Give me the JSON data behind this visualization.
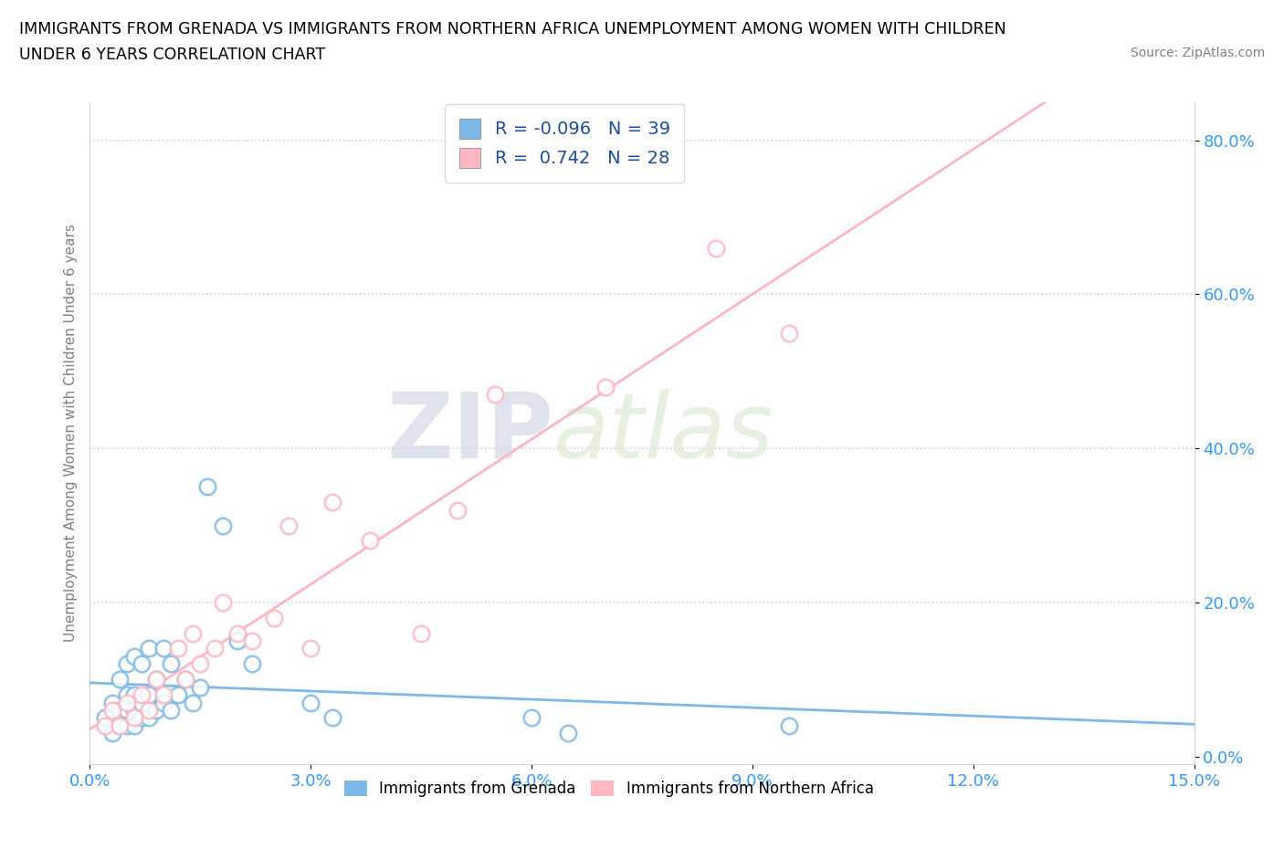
{
  "title_line1": "IMMIGRANTS FROM GRENADA VS IMMIGRANTS FROM NORTHERN AFRICA UNEMPLOYMENT AMONG WOMEN WITH CHILDREN",
  "title_line2": "UNDER 6 YEARS CORRELATION CHART",
  "source": "Source: ZipAtlas.com",
  "ylabel": "Unemployment Among Women with Children Under 6 years",
  "xlabel_ticks": [
    "0.0%",
    "3.0%",
    "6.0%",
    "9.0%",
    "12.0%",
    "15.0%"
  ],
  "ylabel_ticks": [
    "0.0%",
    "20.0%",
    "40.0%",
    "60.0%",
    "80.0%"
  ],
  "xtick_vals": [
    0.0,
    0.03,
    0.06,
    0.09,
    0.12,
    0.15
  ],
  "ytick_vals": [
    0.0,
    0.2,
    0.4,
    0.6,
    0.8
  ],
  "xlim": [
    0.0,
    0.15
  ],
  "ylim": [
    -0.01,
    0.85
  ],
  "r_grenada": -0.096,
  "n_grenada": 39,
  "r_north_africa": 0.742,
  "n_north_africa": 28,
  "color_grenada": "#7cb9e8",
  "color_north_africa": "#ffb6c1",
  "watermark_zip": "ZIP",
  "watermark_atlas": "atlas",
  "legend_label_grenada": "Immigrants from Grenada",
  "legend_label_north_africa": "Immigrants from Northern Africa",
  "grenada_x": [
    0.002,
    0.003,
    0.003,
    0.004,
    0.004,
    0.004,
    0.005,
    0.005,
    0.005,
    0.005,
    0.006,
    0.006,
    0.006,
    0.006,
    0.007,
    0.007,
    0.007,
    0.008,
    0.008,
    0.008,
    0.009,
    0.009,
    0.01,
    0.01,
    0.011,
    0.011,
    0.012,
    0.013,
    0.014,
    0.015,
    0.016,
    0.018,
    0.02,
    0.022,
    0.03,
    0.033,
    0.06,
    0.065,
    0.095
  ],
  "grenada_y": [
    0.05,
    0.03,
    0.07,
    0.04,
    0.06,
    0.1,
    0.04,
    0.06,
    0.08,
    0.12,
    0.04,
    0.06,
    0.08,
    0.13,
    0.05,
    0.07,
    0.12,
    0.05,
    0.08,
    0.14,
    0.06,
    0.1,
    0.07,
    0.14,
    0.06,
    0.12,
    0.08,
    0.1,
    0.07,
    0.09,
    0.35,
    0.3,
    0.15,
    0.12,
    0.07,
    0.05,
    0.05,
    0.03,
    0.04
  ],
  "north_africa_x": [
    0.002,
    0.003,
    0.004,
    0.005,
    0.006,
    0.007,
    0.008,
    0.009,
    0.01,
    0.012,
    0.013,
    0.014,
    0.015,
    0.017,
    0.018,
    0.02,
    0.022,
    0.025,
    0.027,
    0.03,
    0.033,
    0.038,
    0.045,
    0.05,
    0.055,
    0.07,
    0.085,
    0.095
  ],
  "north_africa_y": [
    0.04,
    0.06,
    0.04,
    0.07,
    0.05,
    0.08,
    0.06,
    0.1,
    0.08,
    0.14,
    0.1,
    0.16,
    0.12,
    0.14,
    0.2,
    0.16,
    0.15,
    0.18,
    0.3,
    0.14,
    0.33,
    0.28,
    0.16,
    0.32,
    0.47,
    0.48,
    0.66,
    0.55
  ]
}
